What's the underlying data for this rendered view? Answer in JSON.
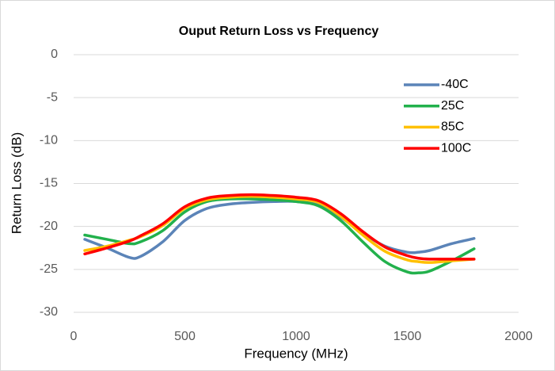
{
  "chart_data": {
    "type": "line",
    "title": "Ouput Return Loss vs Frequency",
    "x_label": "Frequency (MHz)",
    "y_label": "Return Loss (dB)",
    "x": [
      50,
      150,
      250,
      300,
      400,
      500,
      600,
      700,
      800,
      900,
      1000,
      1100,
      1200,
      1300,
      1400,
      1500,
      1550,
      1600,
      1700,
      1800
    ],
    "series": [
      {
        "name": "-40C",
        "color": "#5b84b8",
        "values": [
          -21.5,
          -22.5,
          -23.6,
          -23.5,
          -21.8,
          -19.3,
          -17.9,
          -17.4,
          -17.2,
          -17.1,
          -17.1,
          -17.5,
          -18.9,
          -20.8,
          -22.3,
          -23.0,
          -23.0,
          -22.8,
          -22.0,
          -21.4
        ]
      },
      {
        "name": "25C",
        "color": "#22b14c",
        "values": [
          -21.0,
          -21.5,
          -22.0,
          -21.8,
          -20.5,
          -18.3,
          -17.1,
          -16.8,
          -16.8,
          -16.9,
          -17.1,
          -17.6,
          -19.3,
          -21.8,
          -24.1,
          -25.3,
          -25.4,
          -25.2,
          -24.0,
          -22.6
        ]
      },
      {
        "name": "85C",
        "color": "#ffc000",
        "values": [
          -22.8,
          -22.3,
          -21.6,
          -21.2,
          -19.9,
          -17.9,
          -16.9,
          -16.6,
          -16.5,
          -16.6,
          -16.8,
          -17.2,
          -18.8,
          -21.0,
          -22.9,
          -23.9,
          -24.1,
          -24.2,
          -24.0,
          -23.8
        ]
      },
      {
        "name": "100C",
        "color": "#ff0000",
        "values": [
          -23.2,
          -22.5,
          -21.7,
          -21.1,
          -19.7,
          -17.7,
          -16.7,
          -16.4,
          -16.3,
          -16.4,
          -16.6,
          -17.0,
          -18.5,
          -20.6,
          -22.4,
          -23.4,
          -23.7,
          -23.8,
          -23.8,
          -23.8
        ]
      }
    ],
    "xlim": [
      0,
      2000
    ],
    "xticks": [
      0,
      500,
      1000,
      1500,
      2000
    ],
    "ylim": [
      -30,
      0
    ],
    "yticks": [
      0,
      -5,
      -10,
      -15,
      -20,
      -25,
      -30
    ],
    "grid": true,
    "legend": "upper right"
  }
}
